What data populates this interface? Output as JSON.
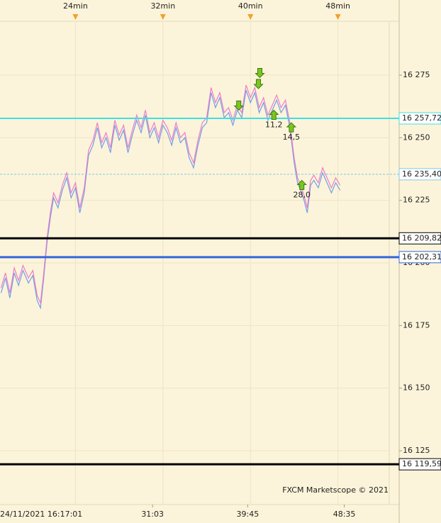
{
  "chart_data": {
    "type": "line",
    "x": [
      17.2,
      17.6,
      18.0,
      18.4,
      18.8,
      19.2,
      19.7,
      20.1,
      20.5,
      20.8,
      21.1,
      21.4,
      21.7,
      22.0,
      22.4,
      22.8,
      23.2,
      23.6,
      24.0,
      24.4,
      24.8,
      25.2,
      25.6,
      26.0,
      26.4,
      26.8,
      27.2,
      27.6,
      28.0,
      28.4,
      28.8,
      29.2,
      29.6,
      30.0,
      30.4,
      30.8,
      31.2,
      31.6,
      32.0,
      32.4,
      32.8,
      33.2,
      33.6,
      34.0,
      34.4,
      34.8,
      35.2,
      35.6,
      36.0,
      36.4,
      36.8,
      37.2,
      37.6,
      38.0,
      38.4,
      38.8,
      39.2,
      39.6,
      40.0,
      40.4,
      40.8,
      41.2,
      41.6,
      42.0,
      42.4,
      42.8,
      43.2,
      43.6,
      44.0,
      44.3,
      44.6,
      44.9,
      45.2,
      45.5,
      45.8,
      46.2,
      46.6,
      47.0,
      47.4,
      47.8,
      48.2
    ],
    "series": [
      {
        "color": "#6f9fe8",
        "values": [
          16188,
          16194,
          16186,
          16196,
          16191,
          16197,
          16192,
          16195,
          16185,
          16182,
          16194,
          16208,
          16218,
          16226,
          16222,
          16229,
          16234,
          16226,
          16230,
          16220,
          16228,
          16243,
          16247,
          16254,
          16246,
          16250,
          16244,
          16255,
          16249,
          16253,
          16244,
          16251,
          16257,
          16252,
          16259,
          16250,
          16254,
          16248,
          16255,
          16252,
          16247,
          16254,
          16248,
          16250,
          16242,
          16238,
          16247,
          16254,
          16256,
          16268,
          16262,
          16266,
          16258,
          16260,
          16255,
          16261,
          16258,
          16269,
          16264,
          16268,
          16260,
          16264,
          16257,
          16261,
          16265,
          16260,
          16263,
          16254,
          16240,
          16232,
          16229,
          16225,
          16220,
          16231,
          16233,
          16230,
          16236,
          16232,
          16228,
          16232,
          16229
        ]
      },
      {
        "color": "#f07cc8",
        "values": [
          16190,
          16196,
          16188,
          16198,
          16193,
          16199,
          16194,
          16197,
          16187,
          16184,
          16196,
          16210,
          16220,
          16228,
          16224,
          16231,
          16236,
          16228,
          16232,
          16222,
          16230,
          16245,
          16249,
          16256,
          16248,
          16252,
          16246,
          16257,
          16251,
          16255,
          16246,
          16253,
          16259,
          16254,
          16261,
          16252,
          16256,
          16250,
          16257,
          16254,
          16249,
          16256,
          16250,
          16252,
          16244,
          16240,
          16249,
          16256,
          16258,
          16270,
          16264,
          16268,
          16260,
          16262,
          16257,
          16263,
          16260,
          16271,
          16266,
          16270,
          16262,
          16266,
          16259,
          16263,
          16267,
          16262,
          16265,
          16256,
          16242,
          16234,
          16231,
          16227,
          16222,
          16233,
          16235,
          16232,
          16238,
          16234,
          16230,
          16234,
          16231
        ]
      }
    ],
    "xlim": [
      17.1,
      53.6
    ],
    "ylim": [
      16103.5,
      16296.5
    ],
    "yticks": [
      {
        "value": 16275,
        "label": "16 275"
      },
      {
        "value": 16250,
        "label": "16 250"
      },
      {
        "value": 16225,
        "label": "16 225"
      },
      {
        "value": 16200,
        "label": "16 200"
      },
      {
        "value": 16175,
        "label": "16 175"
      },
      {
        "value": 16150,
        "label": "16 150"
      },
      {
        "value": 16125,
        "label": "16 125"
      }
    ],
    "top_xticks": [
      {
        "value": 24,
        "label": "24min"
      },
      {
        "value": 32,
        "label": "32min"
      },
      {
        "value": 40,
        "label": "40min"
      },
      {
        "value": 48,
        "label": "48min"
      }
    ],
    "xticks": [
      {
        "value": 17.02,
        "label": "24/11/2021 16:17:01"
      },
      {
        "value": 31.05,
        "label": "31:03"
      },
      {
        "value": 39.75,
        "label": "39:45"
      },
      {
        "value": 48.58,
        "label": "48:35"
      }
    ],
    "levels": [
      {
        "value": 16257.72,
        "label": "16 257,72",
        "color": "#3fe0e0",
        "style": "solid",
        "width": 2
      },
      {
        "value": 16235.4,
        "label": "16 235,40",
        "color": "#7ec8e8",
        "style": "dashed",
        "width": 1
      },
      {
        "value": 16209.82,
        "label": "16 209,82",
        "color": "#000000",
        "style": "solid",
        "width": 3
      },
      {
        "value": 16202.31,
        "label": "16 202,31",
        "color": "#3366dd",
        "style": "solid",
        "width": 3
      },
      {
        "value": 16119.59,
        "label": "16 119,59",
        "color": "#000000",
        "style": "solid",
        "width": 3
      }
    ],
    "signals": [
      {
        "x": 40.86,
        "y": 16276,
        "direction": "down"
      },
      {
        "x": 40.73,
        "y": 16271.6,
        "direction": "down"
      },
      {
        "x": 38.93,
        "y": 16263,
        "direction": "down"
      },
      {
        "x": 42.14,
        "y": 16259,
        "direction": "up",
        "label": "11,2"
      },
      {
        "x": 43.74,
        "y": 16254,
        "direction": "up",
        "label": "14,5"
      },
      {
        "x": 44.7,
        "y": 16231,
        "direction": "up",
        "label": "28,0"
      }
    ],
    "watermark": "FXCM Marketscope © 2021",
    "grid": true
  }
}
